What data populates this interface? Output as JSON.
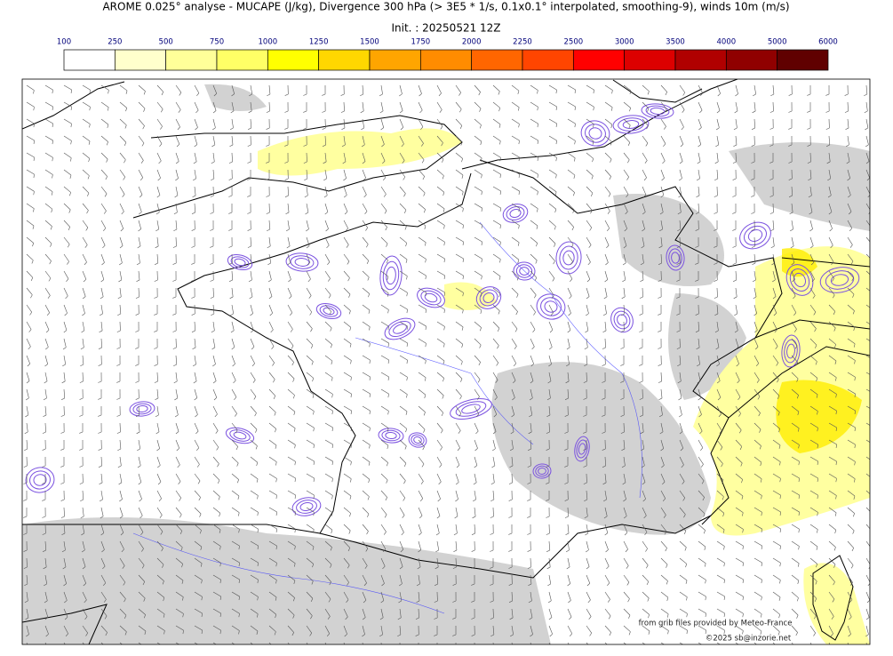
{
  "header": {
    "title": "AROME 0.025° analyse - MUCAPE (J/kg), Divergence 300 hPa (> 3E5 * 1/s, 0.1x0.1° interpolated, smoothing-9), winds 10m (m/s)",
    "subtitle": "Init. : 20250521 12Z"
  },
  "colorbar": {
    "levels": [
      100,
      250,
      500,
      750,
      1000,
      1250,
      1500,
      1750,
      2000,
      2250,
      2500,
      3000,
      3500,
      4000,
      5000,
      6000
    ],
    "colors": [
      "#ffffff",
      "#ffffcc",
      "#ffff99",
      "#ffff66",
      "#ffff00",
      "#ffd700",
      "#ffa500",
      "#ff8c00",
      "#ff6600",
      "#ff4500",
      "#ff0000",
      "#dd0000",
      "#b00000",
      "#900000",
      "#600000"
    ]
  },
  "credits": [
    "from grib files provided by Meteo-France",
    "©2025 sb@inzorie.net"
  ]
}
